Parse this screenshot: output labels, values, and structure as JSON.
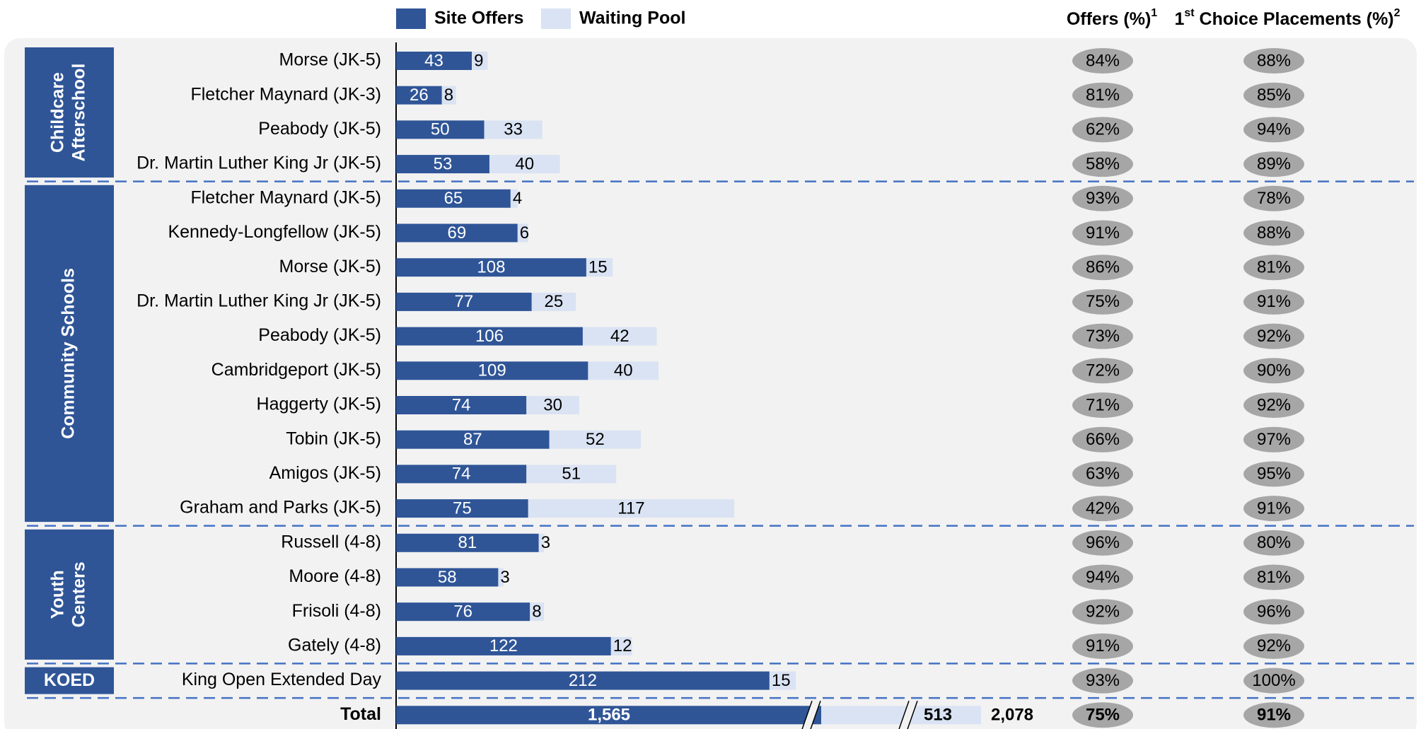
{
  "chart_data": {
    "type": "bar",
    "orientation": "horizontal",
    "stacked": true,
    "xlim": [
      0,
      220
    ],
    "legend": [
      {
        "name": "Site Offers",
        "color": "#2f5597"
      },
      {
        "name": "Waiting Pool",
        "color": "#dae3f3"
      }
    ],
    "columns": [
      {
        "text": "Offers (%)",
        "note": "1"
      },
      {
        "prefix": "1",
        "prefix_sup": "st",
        "text": " Choice Placements (%)",
        "note": "2"
      }
    ],
    "pct_color": "#a6a6a6",
    "groups": [
      {
        "name": [
          "Childcare",
          "Afterschool"
        ],
        "categories": [
          "Morse (JK-5)",
          "Fletcher Maynard (JK-3)",
          "Peabody (JK-5)",
          "Dr. Martin Luther King Jr (JK-5)"
        ],
        "site_offers": [
          43,
          26,
          50,
          53
        ],
        "waiting_pool": [
          9,
          8,
          33,
          40
        ],
        "offers_pct": [
          84,
          81,
          62,
          58
        ],
        "offers_pct_labels": [
          "84%",
          "81%",
          "62%",
          "58%"
        ],
        "first_choice_pct": [
          88,
          85,
          94,
          89
        ],
        "first_choice_pct_labels": [
          "88%",
          "85%",
          "94%",
          "89%"
        ]
      },
      {
        "name": [
          "Community Schools"
        ],
        "categories": [
          "Fletcher Maynard (JK-5)",
          "Kennedy-Longfellow (JK-5)",
          "Morse (JK-5)",
          "Dr. Martin Luther King Jr (JK-5)",
          "Peabody (JK-5)",
          "Cambridgeport (JK-5)",
          "Haggerty (JK-5)",
          "Tobin (JK-5)",
          "Amigos (JK-5)",
          "Graham and Parks (JK-5)"
        ],
        "site_offers": [
          65,
          69,
          108,
          77,
          106,
          109,
          74,
          87,
          74,
          75
        ],
        "waiting_pool": [
          4,
          6,
          15,
          25,
          42,
          40,
          30,
          52,
          51,
          117
        ],
        "offers_pct": [
          93,
          91,
          86,
          75,
          73,
          72,
          71,
          66,
          63,
          42
        ],
        "offers_pct_labels": [
          "93%",
          "91%",
          "86%",
          "75%",
          "73%",
          "72%",
          "71%",
          "66%",
          "63%",
          "42%"
        ],
        "first_choice_pct": [
          78,
          88,
          81,
          91,
          92,
          90,
          92,
          97,
          95,
          91
        ],
        "first_choice_pct_labels": [
          "78%",
          "88%",
          "81%",
          "91%",
          "92%",
          "90%",
          "92%",
          "97%",
          "95%",
          "91%"
        ]
      },
      {
        "name": [
          "Youth",
          "Centers"
        ],
        "categories": [
          "Russell (4-8)",
          "Moore (4-8)",
          "Frisoli (4-8)",
          "Gately (4-8)"
        ],
        "site_offers": [
          81,
          58,
          76,
          122
        ],
        "waiting_pool": [
          3,
          3,
          8,
          12
        ],
        "offers_pct": [
          96,
          94,
          92,
          91
        ],
        "offers_pct_labels": [
          "96%",
          "94%",
          "92%",
          "91%"
        ],
        "first_choice_pct": [
          80,
          81,
          96,
          92
        ],
        "first_choice_pct_labels": [
          "80%",
          "81%",
          "96%",
          "92%"
        ]
      },
      {
        "name": [
          "KOED"
        ],
        "categories": [
          "King Open Extended Day"
        ],
        "site_offers": [
          212
        ],
        "waiting_pool": [
          15
        ],
        "offers_pct": [
          93
        ],
        "offers_pct_labels": [
          "93%"
        ],
        "first_choice_pct": [
          100
        ],
        "first_choice_pct_labels": [
          "100%"
        ]
      }
    ],
    "total": {
      "label": "Total",
      "site_offers": 1565,
      "site_offers_label": "1,565",
      "waiting_pool": 513,
      "sum": 2078,
      "sum_label": "2,078",
      "offers_pct": 75,
      "offers_pct_label": "75%",
      "first_choice_pct": 91,
      "first_choice_pct_label": "91%"
    }
  }
}
